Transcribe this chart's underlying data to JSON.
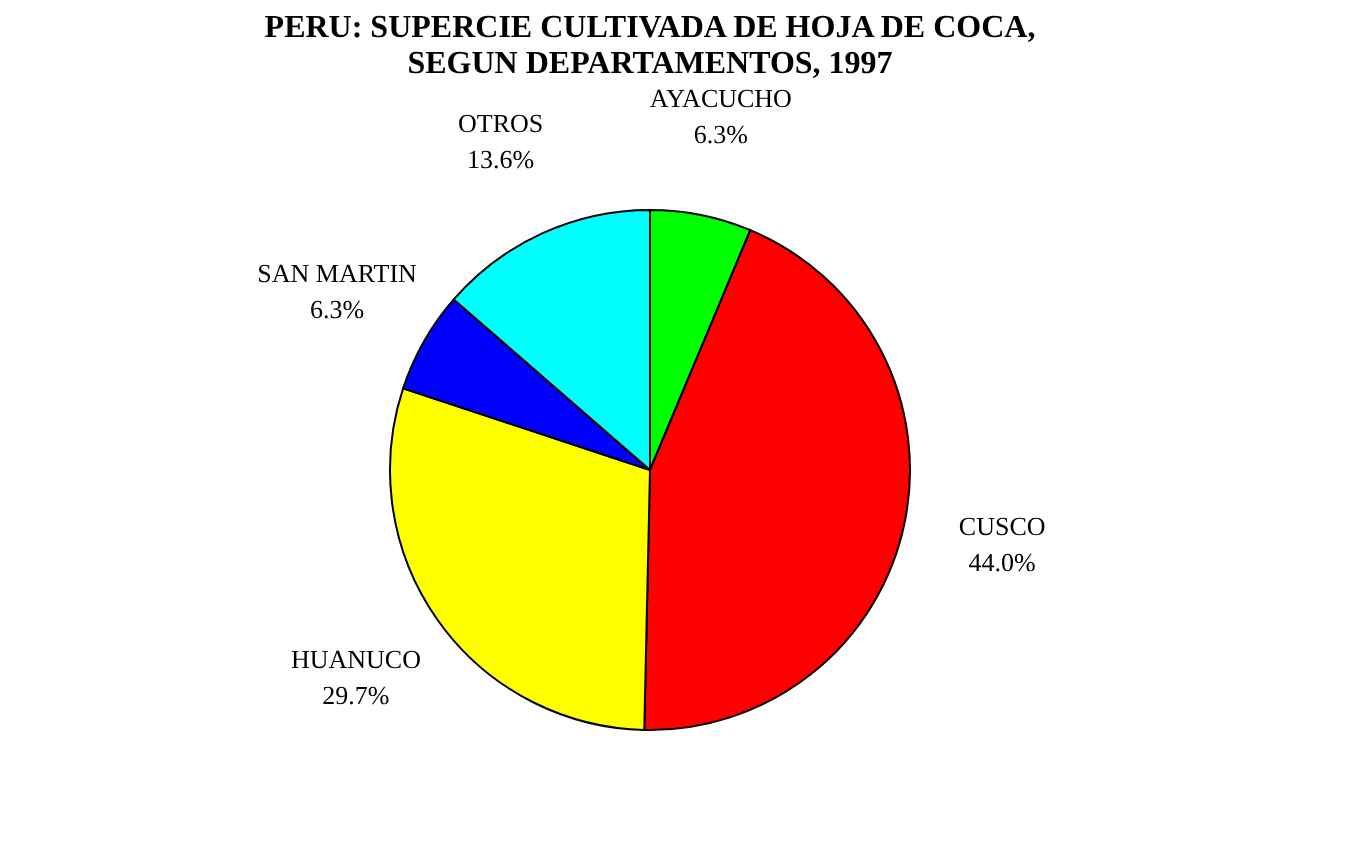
{
  "chart_data": {
    "type": "pie",
    "title": "PERU: SUPERCIE CULTIVADA DE HOJA DE COCA,\nSEGUN DEPARTAMENTOS, 1997",
    "categories": [
      "AYACUCHO",
      "CUSCO",
      "HUANUCO",
      "SAN MARTIN",
      "OTROS"
    ],
    "values": [
      6.3,
      44.0,
      29.7,
      6.3,
      13.6
    ],
    "colors": [
      "#00ff00",
      "#ff0000",
      "#ffff00",
      "#0000ff",
      "#00ffff"
    ],
    "value_labels": [
      "6.3%",
      "44.0%",
      "29.7%",
      "6.3%",
      "13.6%"
    ],
    "legend": false
  }
}
